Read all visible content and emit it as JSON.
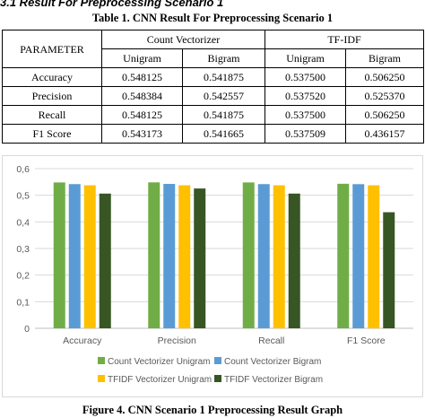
{
  "section_heading": "3.1 Result For Preprocessing Scenario 1",
  "table_caption": "Table 1. CNN Result For Preprocessing Scenario 1",
  "table": {
    "parameter_header": "PARAMETER",
    "group_headers": [
      "Count Vectorizer",
      "TF-IDF"
    ],
    "sub_headers": [
      "Unigram",
      "Bigram",
      "Unigram",
      "Bigram"
    ],
    "rows": [
      {
        "label": "Accuracy",
        "values": [
          "0.548125",
          "0.541875",
          "0.537500",
          "0.506250"
        ]
      },
      {
        "label": "Precision",
        "values": [
          "0.548384",
          "0.542557",
          "0.537520",
          "0.525370"
        ]
      },
      {
        "label": "Recall",
        "values": [
          "0.548125",
          "0.541875",
          "0.537500",
          "0.506250"
        ]
      },
      {
        "label": "F1 Score",
        "values": [
          "0.543173",
          "0.541665",
          "0.537509",
          "0.436157"
        ]
      }
    ]
  },
  "chart_data": {
    "type": "bar",
    "categories": [
      "Accuracy",
      "Precision",
      "Recall",
      "F1 Score"
    ],
    "series": [
      {
        "name": "Count Vectorizer Unigram",
        "color": "#70ad47",
        "values": [
          0.548125,
          0.548384,
          0.548125,
          0.543173
        ]
      },
      {
        "name": "Count Vectorizer Bigram",
        "color": "#5b9bd5",
        "values": [
          0.541875,
          0.542557,
          0.541875,
          0.541665
        ]
      },
      {
        "name": "TFIDF Vectorizer Unigram",
        "color": "#ffc000",
        "values": [
          0.5375,
          0.53752,
          0.5375,
          0.537509
        ]
      },
      {
        "name": "TFIDF Vectorizer Bigram",
        "color": "#375623",
        "values": [
          0.50625,
          0.52537,
          0.50625,
          0.436157
        ]
      }
    ],
    "ylim": [
      0,
      0.6
    ],
    "yticks": [
      "0",
      "0,1",
      "0,2",
      "0,3",
      "0,4",
      "0,5",
      "0,6"
    ],
    "grid": true,
    "legend_position": "bottom"
  },
  "figure_caption": "Figure 4. CNN Scenario 1 Preprocessing Result Graph"
}
